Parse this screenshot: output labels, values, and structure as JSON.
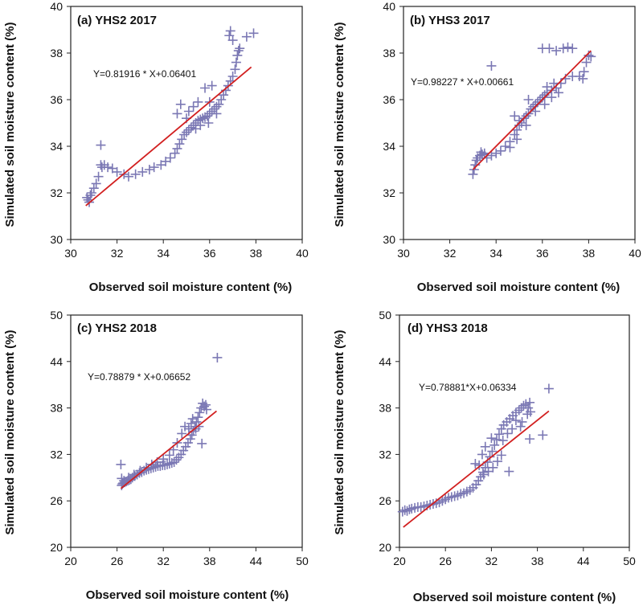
{
  "chart_data": [
    {
      "type": "scatter",
      "title": "(a) YHS2 2017",
      "xlabel": "Observed soil moisture content (%)",
      "ylabel": "Simulated soil moisture content (%)",
      "xlim": [
        30,
        40
      ],
      "ylim": [
        30,
        40
      ],
      "xticks": [
        30,
        32,
        34,
        36,
        38,
        40
      ],
      "yticks": [
        30,
        32,
        34,
        36,
        38,
        40
      ],
      "equation": "Y=0.81916 * X+0.06401",
      "marker": "+",
      "marker_color": "#7b78b4",
      "line_color": "#d22020",
      "fit_line": {
        "x": [
          30.65,
          37.8
        ],
        "y": [
          31.45,
          37.4
        ]
      },
      "points": [
        [
          30.7,
          31.8
        ],
        [
          30.75,
          31.7
        ],
        [
          30.8,
          31.6
        ],
        [
          30.85,
          31.9
        ],
        [
          30.9,
          32.0
        ],
        [
          31.0,
          32.2
        ],
        [
          31.1,
          32.4
        ],
        [
          31.2,
          32.7
        ],
        [
          31.3,
          33.2
        ],
        [
          31.3,
          34.05
        ],
        [
          31.35,
          33.1
        ],
        [
          31.45,
          33.2
        ],
        [
          31.6,
          33.1
        ],
        [
          31.8,
          33.05
        ],
        [
          32.0,
          32.9
        ],
        [
          32.3,
          32.8
        ],
        [
          32.5,
          32.7
        ],
        [
          32.8,
          32.8
        ],
        [
          33.1,
          32.9
        ],
        [
          33.4,
          33.0
        ],
        [
          33.6,
          33.1
        ],
        [
          33.9,
          33.2
        ],
        [
          34.1,
          33.35
        ],
        [
          34.3,
          33.5
        ],
        [
          34.5,
          33.7
        ],
        [
          34.6,
          33.9
        ],
        [
          34.7,
          34.1
        ],
        [
          34.8,
          34.3
        ],
        [
          34.9,
          34.5
        ],
        [
          35.0,
          34.6
        ],
        [
          35.1,
          34.7
        ],
        [
          35.2,
          34.8
        ],
        [
          35.3,
          34.9
        ],
        [
          35.4,
          35.0
        ],
        [
          35.5,
          35.1
        ],
        [
          35.6,
          35.15
        ],
        [
          35.7,
          35.2
        ],
        [
          35.8,
          35.25
        ],
        [
          35.9,
          35.3
        ],
        [
          36.0,
          35.4
        ],
        [
          36.1,
          35.5
        ],
        [
          36.2,
          35.6
        ],
        [
          36.3,
          35.7
        ],
        [
          36.4,
          35.8
        ],
        [
          36.5,
          36.0
        ],
        [
          36.6,
          36.2
        ],
        [
          36.7,
          36.4
        ],
        [
          36.8,
          36.6
        ],
        [
          36.9,
          36.8
        ],
        [
          37.0,
          37.0
        ],
        [
          37.1,
          37.3
        ],
        [
          37.15,
          37.6
        ],
        [
          37.2,
          37.9
        ],
        [
          37.25,
          38.1
        ],
        [
          37.3,
          38.2
        ],
        [
          36.85,
          38.75
        ],
        [
          36.9,
          38.95
        ],
        [
          37.0,
          38.55
        ],
        [
          37.6,
          38.7
        ],
        [
          37.9,
          38.85
        ],
        [
          35.1,
          35.5
        ],
        [
          35.3,
          35.7
        ],
        [
          35.5,
          35.9
        ],
        [
          35.0,
          35.2
        ],
        [
          34.6,
          35.4
        ],
        [
          34.75,
          35.8
        ],
        [
          35.8,
          36.5
        ],
        [
          36.1,
          36.6
        ],
        [
          36.0,
          35.9
        ],
        [
          36.3,
          35.4
        ],
        [
          35.95,
          35.0
        ],
        [
          35.6,
          34.9
        ],
        [
          35.4,
          34.75
        ]
      ]
    },
    {
      "type": "scatter",
      "title": "(b) YHS3 2017",
      "xlabel": "Observed soil moisture content (%)",
      "ylabel": "Simulated soil moisture content (%)",
      "xlim": [
        30,
        40
      ],
      "ylim": [
        30,
        40
      ],
      "xticks": [
        30,
        32,
        34,
        36,
        38,
        40
      ],
      "yticks": [
        30,
        32,
        34,
        36,
        38,
        40
      ],
      "equation": "Y=0.98227 * X+0.00661",
      "marker": "+",
      "marker_color": "#7b78b4",
      "line_color": "#d22020",
      "fit_line": {
        "x": [
          33.0,
          38.1
        ],
        "y": [
          33.0,
          38.1
        ]
      },
      "points": [
        [
          33.0,
          32.8
        ],
        [
          33.05,
          33.0
        ],
        [
          33.1,
          33.2
        ],
        [
          33.15,
          33.4
        ],
        [
          33.2,
          33.5
        ],
        [
          33.3,
          33.6
        ],
        [
          33.35,
          33.75
        ],
        [
          33.4,
          33.65
        ],
        [
          33.5,
          33.7
        ],
        [
          33.6,
          33.5
        ],
        [
          33.8,
          33.6
        ],
        [
          34.0,
          33.7
        ],
        [
          34.2,
          33.8
        ],
        [
          34.4,
          34.0
        ],
        [
          34.6,
          34.2
        ],
        [
          34.8,
          34.5
        ],
        [
          34.9,
          34.7
        ],
        [
          35.0,
          34.9
        ],
        [
          35.1,
          35.0
        ],
        [
          35.2,
          35.2
        ],
        [
          35.3,
          35.3
        ],
        [
          35.4,
          35.4
        ],
        [
          35.5,
          35.6
        ],
        [
          35.6,
          35.7
        ],
        [
          35.7,
          35.8
        ],
        [
          35.8,
          35.9
        ],
        [
          35.9,
          36.0
        ],
        [
          36.0,
          36.1
        ],
        [
          36.1,
          36.2
        ],
        [
          36.2,
          36.3
        ],
        [
          36.4,
          36.4
        ],
        [
          36.6,
          36.5
        ],
        [
          36.8,
          36.7
        ],
        [
          37.0,
          36.9
        ],
        [
          37.3,
          37.0
        ],
        [
          37.6,
          37.0
        ],
        [
          37.8,
          37.2
        ],
        [
          37.9,
          37.6
        ],
        [
          38.0,
          37.9
        ],
        [
          38.1,
          37.85
        ],
        [
          36.0,
          38.2
        ],
        [
          36.3,
          38.2
        ],
        [
          36.6,
          38.1
        ],
        [
          36.9,
          38.2
        ],
        [
          37.1,
          38.25
        ],
        [
          37.3,
          38.2
        ],
        [
          37.75,
          36.9
        ],
        [
          33.8,
          37.45
        ],
        [
          34.8,
          35.3
        ],
        [
          35.0,
          35.1
        ],
        [
          35.4,
          36.0
        ],
        [
          35.7,
          35.5
        ],
        [
          36.1,
          35.8
        ],
        [
          36.4,
          36.1
        ],
        [
          36.7,
          36.3
        ],
        [
          36.5,
          36.7
        ],
        [
          36.2,
          36.55
        ],
        [
          35.3,
          34.9
        ],
        [
          34.9,
          34.3
        ],
        [
          34.6,
          33.95
        ]
      ]
    },
    {
      "type": "scatter",
      "title": "(c) YHS2 2018",
      "xlabel": "Observed soil moisture content (%)",
      "ylabel": "Simulated soil moisture content (%)",
      "xlim": [
        20,
        50
      ],
      "ylim": [
        20,
        50
      ],
      "xticks": [
        20,
        26,
        32,
        38,
        44,
        50
      ],
      "yticks": [
        20,
        26,
        32,
        38,
        44,
        50
      ],
      "equation": "Y=0.78879 * X+0.06652",
      "marker": "+",
      "marker_color": "#7b78b4",
      "line_color": "#d22020",
      "fit_line": {
        "x": [
          26.5,
          38.9
        ],
        "y": [
          27.6,
          37.6
        ]
      },
      "points": [
        [
          26.5,
          30.7
        ],
        [
          26.6,
          28.0
        ],
        [
          26.7,
          28.2
        ],
        [
          26.8,
          28.3
        ],
        [
          27.0,
          28.4
        ],
        [
          27.2,
          28.5
        ],
        [
          27.4,
          28.6
        ],
        [
          27.6,
          28.7
        ],
        [
          27.8,
          28.8
        ],
        [
          28.0,
          29.0
        ],
        [
          28.3,
          29.2
        ],
        [
          28.6,
          29.4
        ],
        [
          28.9,
          29.6
        ],
        [
          29.2,
          29.7
        ],
        [
          29.5,
          29.9
        ],
        [
          29.8,
          30.0
        ],
        [
          30.1,
          30.1
        ],
        [
          30.4,
          30.2
        ],
        [
          30.7,
          30.3
        ],
        [
          31.0,
          30.4
        ],
        [
          31.3,
          30.5
        ],
        [
          31.6,
          30.5
        ],
        [
          31.9,
          30.6
        ],
        [
          32.2,
          30.6
        ],
        [
          32.5,
          30.7
        ],
        [
          32.8,
          30.8
        ],
        [
          33.1,
          30.9
        ],
        [
          33.4,
          31.0
        ],
        [
          33.7,
          31.3
        ],
        [
          34.0,
          31.6
        ],
        [
          34.3,
          32.0
        ],
        [
          34.6,
          32.5
        ],
        [
          34.9,
          33.0
        ],
        [
          35.2,
          33.5
        ],
        [
          35.5,
          34.0
        ],
        [
          35.7,
          34.5
        ],
        [
          35.9,
          35.0
        ],
        [
          36.1,
          35.6
        ],
        [
          36.3,
          36.2
        ],
        [
          36.5,
          36.8
        ],
        [
          36.7,
          37.4
        ],
        [
          36.9,
          38.0
        ],
        [
          37.1,
          38.6
        ],
        [
          37.3,
          38.2
        ],
        [
          37.6,
          37.8
        ],
        [
          39.0,
          44.5
        ],
        [
          37.0,
          33.4
        ],
        [
          36.2,
          35.3
        ],
        [
          35.6,
          36.0
        ],
        [
          34.4,
          34.7
        ],
        [
          33.8,
          33.5
        ],
        [
          33.3,
          32.6
        ],
        [
          32.8,
          31.9
        ],
        [
          32.0,
          31.4
        ],
        [
          31.2,
          31.0
        ],
        [
          30.5,
          30.7
        ],
        [
          29.8,
          30.3
        ],
        [
          29.0,
          29.9
        ],
        [
          28.2,
          29.4
        ],
        [
          27.5,
          29.0
        ],
        [
          26.9,
          28.6
        ],
        [
          26.6,
          28.9
        ],
        [
          34.8,
          35.6
        ],
        [
          35.3,
          35.3
        ],
        [
          35.8,
          36.6
        ],
        [
          36.6,
          35.6
        ],
        [
          37.5,
          38.4
        ]
      ]
    },
    {
      "type": "scatter",
      "title": "(d) YHS3 2018",
      "xlabel": "Observed soil moisture content (%)",
      "ylabel": "Simulated soil moisture content (%)",
      "xlim": [
        20,
        50
      ],
      "ylim": [
        20,
        50
      ],
      "xticks": [
        20,
        26,
        32,
        38,
        44,
        50
      ],
      "yticks": [
        20,
        26,
        32,
        38,
        44,
        50
      ],
      "equation": "Y=0.78881*X+0.06334",
      "marker": "+",
      "marker_color": "#7b78b4",
      "line_color": "#d22020",
      "fit_line": {
        "x": [
          20.5,
          39.5
        ],
        "y": [
          22.6,
          37.6
        ]
      },
      "points": [
        [
          20.4,
          24.6
        ],
        [
          20.7,
          24.8
        ],
        [
          21.0,
          24.7
        ],
        [
          21.3,
          24.9
        ],
        [
          21.6,
          25.0
        ],
        [
          22.0,
          25.1
        ],
        [
          22.4,
          25.2
        ],
        [
          22.8,
          25.2
        ],
        [
          23.2,
          25.3
        ],
        [
          23.6,
          25.4
        ],
        [
          24.0,
          25.5
        ],
        [
          24.4,
          25.6
        ],
        [
          24.8,
          25.7
        ],
        [
          25.2,
          25.8
        ],
        [
          25.6,
          26.0
        ],
        [
          26.0,
          26.2
        ],
        [
          26.4,
          26.4
        ],
        [
          26.8,
          26.5
        ],
        [
          27.2,
          26.6
        ],
        [
          27.6,
          26.7
        ],
        [
          28.0,
          26.9
        ],
        [
          28.4,
          27.0
        ],
        [
          28.8,
          27.2
        ],
        [
          29.2,
          27.4
        ],
        [
          29.6,
          27.7
        ],
        [
          30.0,
          28.1
        ],
        [
          30.3,
          28.6
        ],
        [
          30.6,
          29.1
        ],
        [
          30.9,
          29.7
        ],
        [
          31.2,
          30.3
        ],
        [
          31.5,
          31.0
        ],
        [
          31.8,
          31.7
        ],
        [
          32.1,
          32.4
        ],
        [
          32.4,
          33.2
        ],
        [
          32.7,
          33.9
        ],
        [
          33.0,
          34.6
        ],
        [
          33.3,
          35.3
        ],
        [
          33.6,
          35.8
        ],
        [
          34.0,
          36.2
        ],
        [
          34.4,
          36.6
        ],
        [
          34.8,
          37.0
        ],
        [
          35.2,
          37.4
        ],
        [
          35.6,
          37.7
        ],
        [
          35.9,
          38.0
        ],
        [
          36.2,
          38.3
        ],
        [
          36.5,
          38.5
        ],
        [
          36.8,
          38.0
        ],
        [
          37.1,
          37.5
        ],
        [
          39.5,
          40.5
        ],
        [
          38.7,
          34.5
        ],
        [
          37.0,
          34.0
        ],
        [
          35.8,
          35.6
        ],
        [
          35.2,
          36.4
        ],
        [
          34.7,
          35.3
        ],
        [
          34.1,
          34.7
        ],
        [
          33.3,
          31.9
        ],
        [
          32.8,
          31.1
        ],
        [
          32.2,
          30.3
        ],
        [
          31.6,
          29.8
        ],
        [
          31.0,
          29.4
        ],
        [
          34.3,
          29.8
        ],
        [
          30.4,
          30.6
        ],
        [
          29.9,
          30.8
        ],
        [
          30.8,
          32.0
        ],
        [
          31.2,
          33.0
        ],
        [
          32.0,
          34.1
        ],
        [
          33.5,
          33.8
        ],
        [
          36.0,
          36.2
        ],
        [
          36.7,
          37.2
        ],
        [
          37.0,
          38.7
        ]
      ]
    }
  ]
}
